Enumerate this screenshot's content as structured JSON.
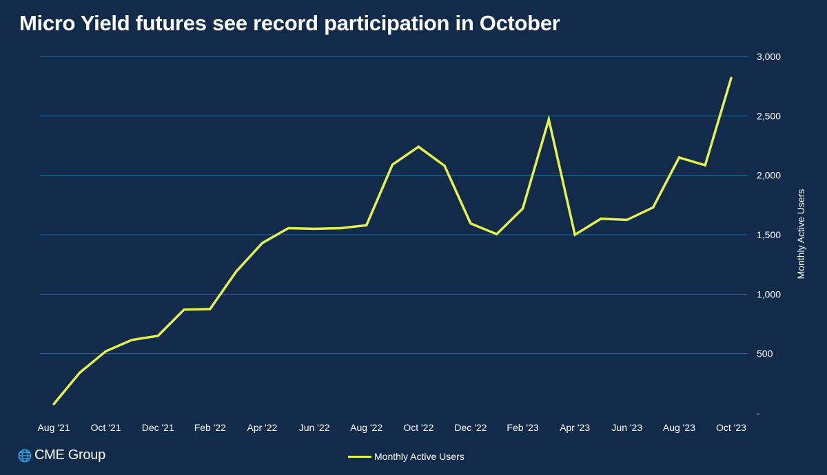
{
  "title": "Micro Yield futures see record participation in October",
  "colors": {
    "background": "#132b4a",
    "line": "#e6f24a",
    "grid": "#1f6fa8",
    "text": "#ffffff"
  },
  "logo": {
    "icon": "globe-icon",
    "text": "CME Group"
  },
  "chart_data": {
    "type": "line",
    "x": [
      "Aug '21",
      "Sep '21",
      "Oct '21",
      "Nov '21",
      "Dec '21",
      "Jan '22",
      "Feb '22",
      "Mar '22",
      "Apr '22",
      "May '22",
      "Jun '22",
      "Jul '22",
      "Aug '22",
      "Sep '22",
      "Oct '22",
      "Nov '22",
      "Dec '22",
      "Jan '23",
      "Feb '23",
      "Mar '23",
      "Apr '23",
      "May '23",
      "Jun '23",
      "Jul '23",
      "Aug '23",
      "Sep '23",
      "Oct '23"
    ],
    "x_tick_labels": [
      "Aug '21",
      "Oct '21",
      "Dec '21",
      "Feb '22",
      "Apr '22",
      "Jun '22",
      "Aug '22",
      "Oct '22",
      "Dec '22",
      "Feb '23",
      "Apr '23",
      "Jun '23",
      "Aug '23",
      "Oct '23"
    ],
    "series": [
      {
        "name": "Monthly Active Users",
        "values": [
          75,
          340,
          520,
          615,
          650,
          870,
          875,
          1190,
          1430,
          1555,
          1550,
          1555,
          1580,
          2090,
          2240,
          2080,
          1595,
          1505,
          1720,
          2470,
          1500,
          1635,
          1625,
          1730,
          2150,
          2085,
          2820
        ]
      }
    ],
    "y_axis_position": "right",
    "ylabel": "Monthly Active Users",
    "ylim": [
      0,
      3000
    ],
    "y_ticks": [
      0,
      500,
      1000,
      1500,
      2000,
      2500,
      3000
    ],
    "y_tick_labels": [
      "-",
      "500",
      "1,000",
      "1,500",
      "2,000",
      "2,500",
      "3,000"
    ],
    "grid": true,
    "legend": "bottom-center"
  }
}
